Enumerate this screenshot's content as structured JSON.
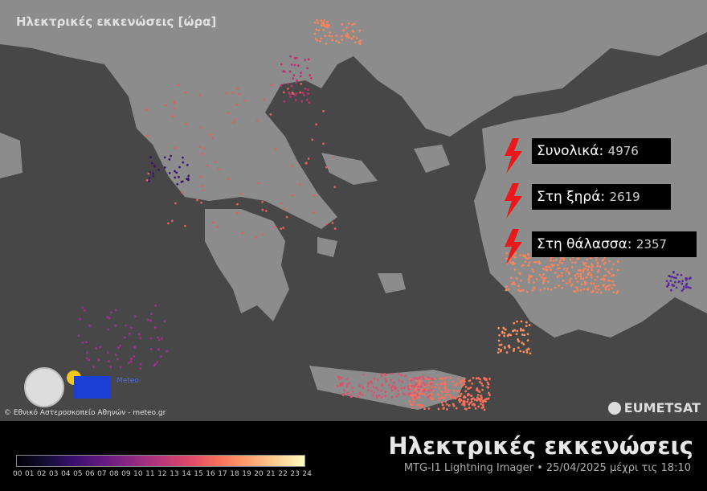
{
  "stats": [
    {
      "label": "Συνολικά:",
      "value": "4976"
    },
    {
      "label": "Στη ξηρά:",
      "value": "2619"
    },
    {
      "label": "Στη θάλασσα:",
      "value": "2357"
    }
  ],
  "legend": {
    "title": "Ηλεκτρικές εκκενώσεις [ώρα]",
    "ticks": [
      "00",
      "01",
      "02",
      "03",
      "04",
      "05",
      "06",
      "07",
      "08",
      "09",
      "10",
      "11",
      "12",
      "13",
      "14",
      "15",
      "16",
      "17",
      "18",
      "19",
      "20",
      "21",
      "22",
      "23",
      "24"
    ]
  },
  "header": {
    "title": "Ηλεκτρικές εκκενώσεις",
    "subtitle": "MTG-I1 Lightning Imager • 25/04/2025 μέχρι τις 18:10"
  },
  "credit": "© Εθνικό Αστεροσκοπείο Αθηνών - meteo.gr",
  "logos": {
    "meteo": "Meteo",
    "eumetsat": "EUMETSAT"
  },
  "colors": {
    "sea": "#474747",
    "land": "#8c8c8c",
    "bolt": "#e8181b",
    "colormap": "magma"
  }
}
